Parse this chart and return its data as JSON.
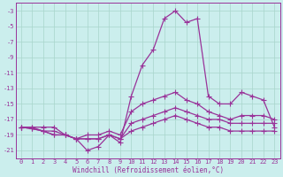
{
  "xlabel": "Windchill (Refroidissement éolien,°C)",
  "background_color": "#cbeeed",
  "grid_color": "#a8d5cb",
  "line_color": "#993399",
  "x": [
    0,
    1,
    2,
    3,
    4,
    5,
    6,
    7,
    8,
    9,
    10,
    11,
    12,
    13,
    14,
    15,
    16,
    17,
    18,
    19,
    20,
    21,
    22,
    23
  ],
  "series": {
    "line1": [
      -18,
      -18.2,
      -18.5,
      -19,
      -19,
      -19.5,
      -19.5,
      -19.5,
      -19,
      -19.5,
      -18.5,
      -18,
      -17.5,
      -17,
      -16.5,
      -17,
      -17.5,
      -18,
      -18,
      -18.5,
      -18.5,
      -18.5,
      -18.5,
      -18.5
    ],
    "line2": [
      -18,
      -18.2,
      -18.5,
      -19,
      -19,
      -19.5,
      -19.5,
      -19.5,
      -19,
      -19.5,
      -17.5,
      -17,
      -16.5,
      -16,
      -15.5,
      -16,
      -16.5,
      -17,
      -17,
      -17.5,
      -17.5,
      -17.5,
      -17.5,
      -17.5
    ],
    "line3": [
      -18,
      -18,
      -18.5,
      -18.5,
      -19,
      -19.5,
      -19,
      -19,
      -18.5,
      -19,
      -16,
      -15,
      -14.5,
      -14,
      -13.5,
      -14.5,
      -15,
      -16,
      -16.5,
      -17,
      -16.5,
      -16.5,
      -16.5,
      -17
    ],
    "line4": [
      -18,
      -18,
      -18,
      -18,
      -19,
      -19.5,
      -21,
      -20.5,
      -19,
      -20,
      -14,
      -10,
      -8,
      -4,
      -3,
      -4.5,
      -4,
      -14,
      -15,
      -15,
      -13.5,
      -14,
      -14.5,
      -18
    ]
  },
  "ylim": [
    -22,
    -2
  ],
  "yticks": [
    -3,
    -5,
    -7,
    -9,
    -11,
    -13,
    -15,
    -17,
    -19,
    -21
  ],
  "xticks": [
    0,
    1,
    2,
    3,
    4,
    5,
    6,
    7,
    8,
    9,
    10,
    11,
    12,
    13,
    14,
    15,
    16,
    17,
    18,
    19,
    20,
    21,
    22,
    23
  ],
  "tick_color": "#993399",
  "xlabel_color": "#993399",
  "font_family": "monospace",
  "marker": "+",
  "markersize": 4,
  "linewidth": 0.9,
  "tick_fontsize": 5,
  "xlabel_fontsize": 5.5
}
